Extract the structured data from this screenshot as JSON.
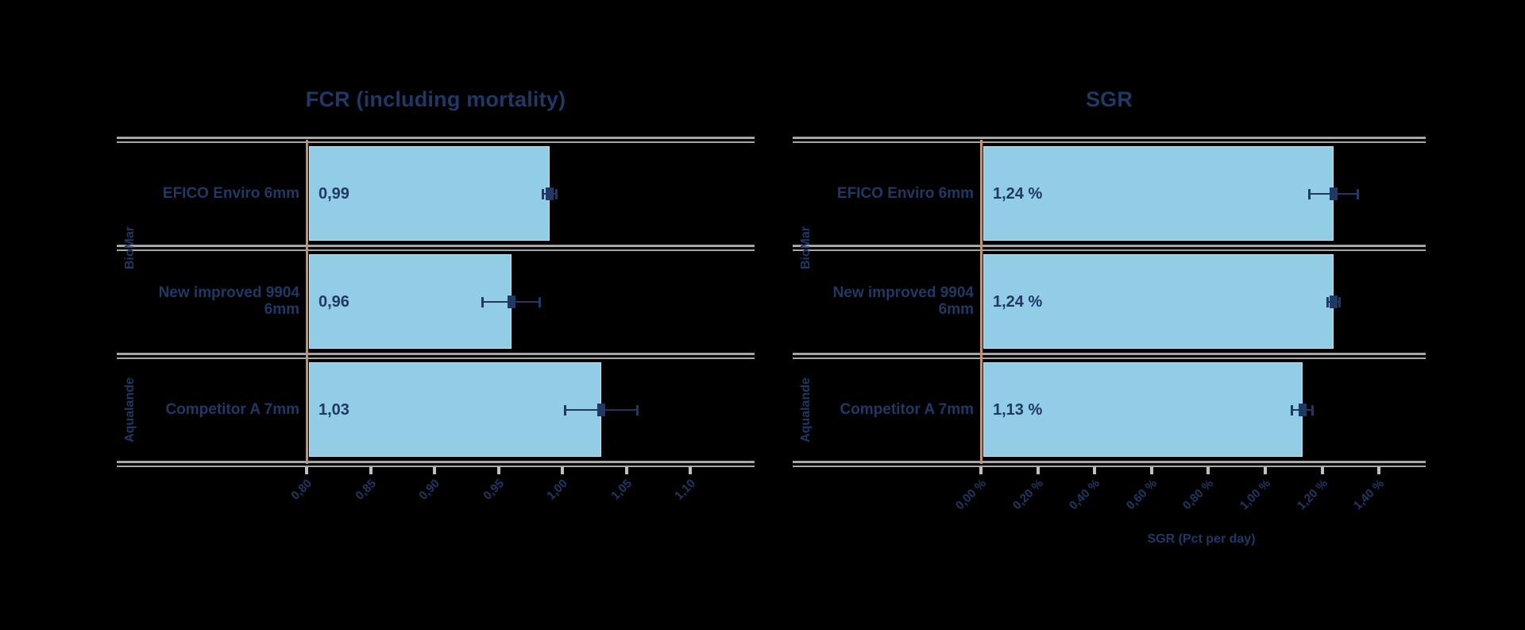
{
  "background": "#000000",
  "text_color": "#1f3864",
  "bar_color": "#92cde6",
  "bar_border_color": "#bfe0f2",
  "separator_color": "#a6a6a6",
  "value_axis_line_color": "#be9270",
  "tick_mark_color": "#bfbfbf",
  "chart_data": [
    {
      "type": "bar",
      "orientation": "horizontal",
      "title": "FCR (including mortality)",
      "xlabel": "",
      "groups": [
        {
          "label": "BioMar",
          "rows": 2
        },
        {
          "label": "Aqualande",
          "rows": 1
        }
      ],
      "categories": [
        "EFICO Enviro 6mm",
        "New improved 9904 6mm",
        "Competitor A 7mm"
      ],
      "values": [
        0.99,
        0.96,
        1.03
      ],
      "value_labels": [
        "0,99",
        "0,96",
        "1,03"
      ],
      "errors": [
        0.005,
        0.022,
        0.028
      ],
      "axis": {
        "min": 0.8,
        "max": 1.15,
        "grid": false,
        "ticks": [
          {
            "v": 0.8,
            "label": "0,80"
          },
          {
            "v": 0.85,
            "label": "0,85"
          },
          {
            "v": 0.9,
            "label": "0,90"
          },
          {
            "v": 0.95,
            "label": "0,95"
          },
          {
            "v": 1.0,
            "label": "1,00"
          },
          {
            "v": 1.05,
            "label": "1,05"
          },
          {
            "v": 1.1,
            "label": "1,10"
          }
        ]
      }
    },
    {
      "type": "bar",
      "orientation": "horizontal",
      "title": "SGR",
      "xlabel": "SGR (Pct per day)",
      "groups": [
        {
          "label": "BioMar",
          "rows": 2
        },
        {
          "label": "Aqualande",
          "rows": 1
        }
      ],
      "categories": [
        "EFICO Enviro 6mm",
        "New improved 9904 6mm",
        "Competitor A 7mm"
      ],
      "values": [
        1.24,
        1.24,
        1.13
      ],
      "value_labels": [
        "1,24 %",
        "1,24 %",
        "1,13 %"
      ],
      "errors": [
        0.085,
        0.02,
        0.035
      ],
      "axis": {
        "min": 0,
        "max": 1.55,
        "grid": false,
        "ticks": [
          {
            "v": 0.0,
            "label": "0,00 %"
          },
          {
            "v": 0.2,
            "label": "0,20 %"
          },
          {
            "v": 0.4,
            "label": "0,40 %"
          },
          {
            "v": 0.6,
            "label": "0,60 %"
          },
          {
            "v": 0.8,
            "label": "0,80 %"
          },
          {
            "v": 1.0,
            "label": "1,00 %"
          },
          {
            "v": 1.2,
            "label": "1,20 %"
          },
          {
            "v": 1.4,
            "label": "1,40 %"
          }
        ]
      }
    }
  ]
}
